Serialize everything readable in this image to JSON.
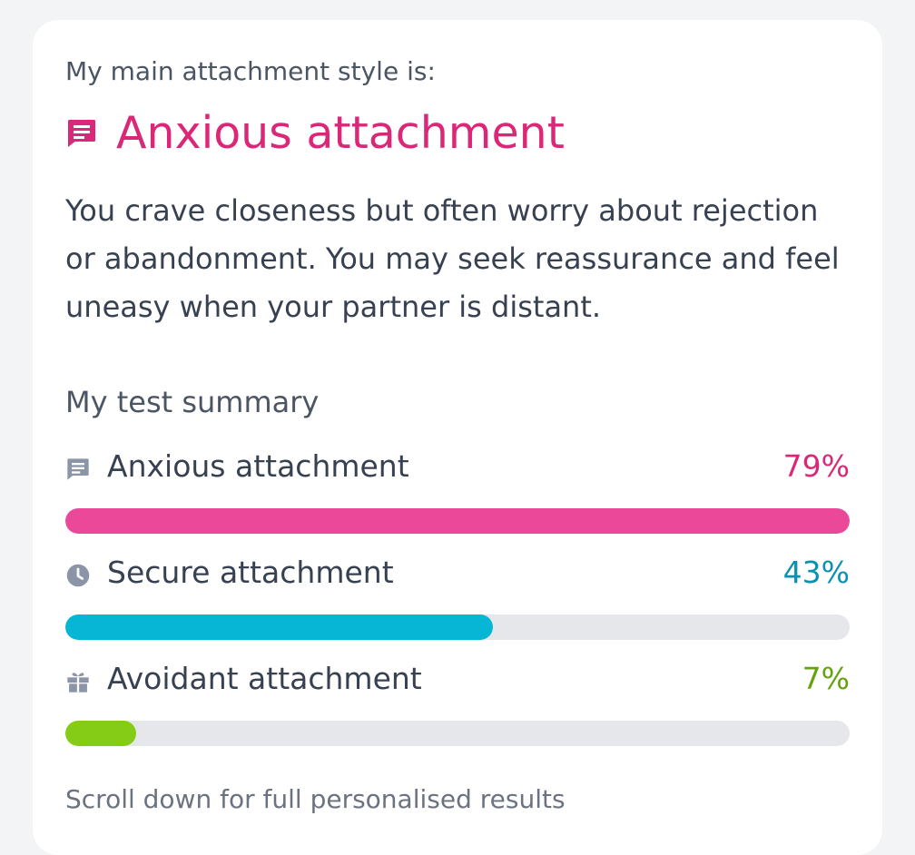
{
  "result": {
    "intro": "My main attachment style is:",
    "headline": "Anxious attachment",
    "headline_color": "#db2777",
    "icon": "chat-message-icon",
    "description": "You crave closeness but often worry about rejection or abandonment. You may seek reassurance and feel uneasy when your partner is distant."
  },
  "summary": {
    "title": "My test summary",
    "items": [
      {
        "label": "Anxious attachment",
        "percent_label": "79%",
        "value": 0.79,
        "fill_fraction": 1.0,
        "color": "#ec4899",
        "text_color": "#db2777",
        "icon": "chat-message-icon"
      },
      {
        "label": "Secure attachment",
        "percent_label": "43%",
        "value": 0.43,
        "fill_fraction": 0.545,
        "color": "#06b6d4",
        "text_color": "#0891b2",
        "icon": "clock-icon"
      },
      {
        "label": "Avoidant attachment",
        "percent_label": "7%",
        "value": 0.07,
        "fill_fraction": 0.09,
        "color": "#84cc16",
        "text_color": "#65a30d",
        "icon": "gift-icon"
      }
    ]
  },
  "footer": {
    "note": "Scroll down for full personalised results"
  }
}
